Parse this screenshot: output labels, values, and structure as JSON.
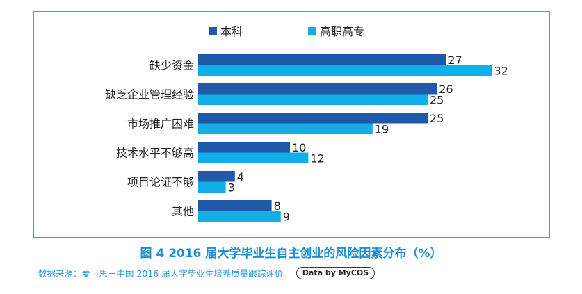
{
  "chart_data": {
    "type": "bar",
    "orientation": "horizontal",
    "categories": [
      "缺少资金",
      "缺乏企业管理经验",
      "市场推广困难",
      "技术水平不够高",
      "项目论证不够",
      "其他"
    ],
    "series": [
      {
        "name": "本科",
        "values": [
          27,
          26,
          25,
          10,
          4,
          8
        ],
        "color": "#1f5aa8"
      },
      {
        "name": "高职高专",
        "values": [
          32,
          25,
          19,
          12,
          3,
          9
        ],
        "color": "#12aee8"
      }
    ],
    "legend_position": "top",
    "grid": false,
    "xlim": [
      0,
      32
    ]
  },
  "caption": "图 4 2016 届大学毕业生自主创业的风险因素分布（%）",
  "source": "数据来源：麦可思－中国 2016 届大学毕业生培养质量跟踪评价。",
  "badge": "Data by MyCOS"
}
